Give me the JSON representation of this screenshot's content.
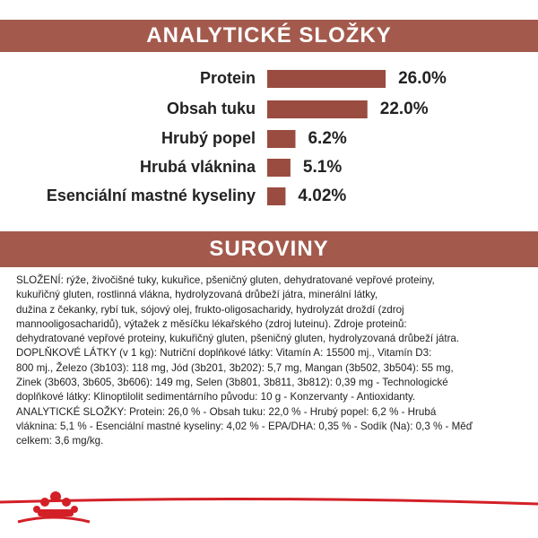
{
  "chart_data": {
    "type": "hbar",
    "title": "ANALYTICKÉ SLOŽKY",
    "categories": [
      "Protein",
      "Obsah tuku",
      "Hrubý popel",
      "Hrubá vláknina",
      "Esenciální mastné kyseliny"
    ],
    "values": [
      26.0,
      22.0,
      6.2,
      5.1,
      4.02
    ],
    "value_labels": [
      "26.0%",
      "22.0%",
      "6.2%",
      "5.1%",
      "4.02%"
    ],
    "color": "#9a4c40"
  },
  "ingredients": {
    "title": "SUROVINY",
    "lines": [
      "SLOŽENÍ: rýže, živočišné tuky, kukuřice, pšeničný gluten, dehydratované vepřové proteiny,",
      "kukuřičný gluten, rostlinná vlákna, hydrolyzovaná drůbeží játra, minerální látky,",
      "dužina z čekanky, rybí tuk, sójový olej, frukto-oligosacharidy, hydrolyzát droždí (zdroj",
      "mannooligosacharidů), výtažek z měsíčku lékařského (zdroj luteinu). Zdroje proteinů:",
      "dehydratované vepřové proteiny, kukuřičný gluten, pšeničný gluten, hydrolyzovaná drůbeží játra.",
      "DOPLŇKOVÉ LÁTKY (v 1 kg): Nutriční doplňkové látky: Vitamín A: 15500 mj., Vitamín D3:",
      "800 mj., Železo (3b103): 118 mg, Jód (3b201, 3b202): 5,7 mg, Mangan (3b502, 3b504): 55 mg,",
      "Zinek (3b603, 3b605, 3b606): 149 mg, Selen (3b801, 3b811, 3b812): 0,39 mg - Technologické",
      "doplňkové látky: Klinoptilolit sedimentárního původu: 10 g - Konzervanty - Antioxidanty.",
      "ANALYTICKÉ SLOŽKY: Protein: 26,0 % - Obsah tuku: 22,0 % - Hrubý popel: 6,2 % - Hrubá",
      "vláknina: 5,1 % - Esenciální mastné kyseliny: 4,02 % - EPA/DHA: 0,35 % - Sodík (Na): 0,3 % - Měď",
      "celkem: 3,6 mg/kg."
    ]
  }
}
